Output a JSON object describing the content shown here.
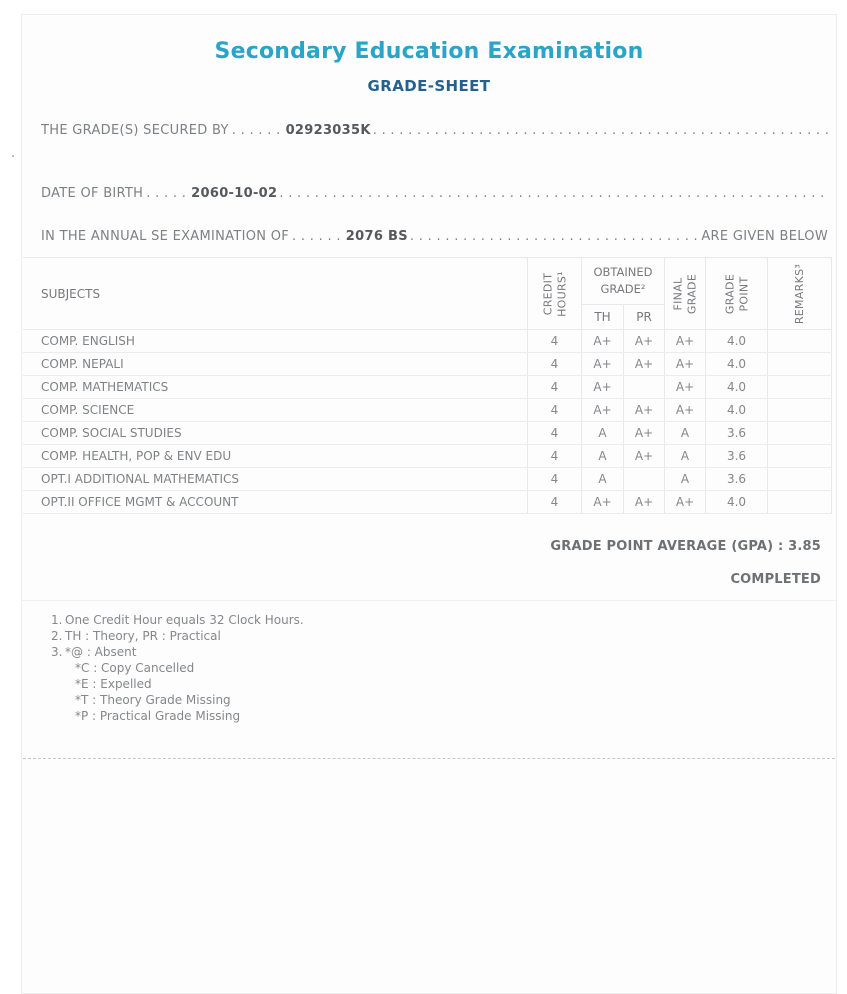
{
  "page": {
    "title": "Secondary Education Examination",
    "subtitle": "GRADE-SHEET",
    "stray_dot": "."
  },
  "info_lines": {
    "secured_by": {
      "label": "THE GRADE(S) SECURED BY",
      "dots_before": ". . . . . .",
      "value": "02923035K",
      "dots_after": ". . . . . . . . . . . . . . . . . . . . . . . . . . . . . . . . . . . . . . . . . . . . . . . . . . . . . . . . . . . . . . . . . . . . . . . . . . . . . . . ."
    },
    "dob": {
      "label": "DATE OF BIRTH",
      "dots_before": ". . . . .",
      "value": "2060-10-02",
      "dots_after": ". . . . . . . . . . . . . . . . . . . . . . . . . . . . . . . . . . . . . . . . . . . . . . . . . . . . . . . . . . . . . . . . . . . . . . . . . . . . . . . ."
    },
    "exam": {
      "label": "IN THE ANNUAL SE EXAMINATION OF",
      "dots_before": ". . . . . .",
      "value": "2076 BS",
      "dots_after": ". . . . . . . . . . . . . . . . . . . . . . . . . . . . . . . . . . . . . . . . . . . . . . . . . . . . . . . . . . . . . . . . . . . . . . . . . . . . . . . .",
      "suffix": "ARE GIVEN BELOW"
    }
  },
  "table": {
    "headers": {
      "subjects": "SUBJECTS",
      "credit_hours": "CREDIT HOURS¹",
      "obtained_grade": "OBTAINED GRADE²",
      "th": "TH",
      "pr": "PR",
      "final_grade": "FINAL GRADE",
      "grade_point": "GRADE POINT",
      "remarks": "REMARKS³"
    },
    "rows": [
      {
        "subject": "COMP. ENGLISH",
        "credit": "4",
        "th": "A+",
        "pr": "A+",
        "final": "A+",
        "point": "4.0",
        "remarks": ""
      },
      {
        "subject": "COMP. NEPALI",
        "credit": "4",
        "th": "A+",
        "pr": "A+",
        "final": "A+",
        "point": "4.0",
        "remarks": ""
      },
      {
        "subject": "COMP. MATHEMATICS",
        "credit": "4",
        "th": "A+",
        "pr": "",
        "final": "A+",
        "point": "4.0",
        "remarks": ""
      },
      {
        "subject": "COMP. SCIENCE",
        "credit": "4",
        "th": "A+",
        "pr": "A+",
        "final": "A+",
        "point": "4.0",
        "remarks": ""
      },
      {
        "subject": "COMP. SOCIAL STUDIES",
        "credit": "4",
        "th": "A",
        "pr": "A+",
        "final": "A",
        "point": "3.6",
        "remarks": ""
      },
      {
        "subject": "COMP. HEALTH, POP & ENV EDU",
        "credit": "4",
        "th": "A",
        "pr": "A+",
        "final": "A",
        "point": "3.6",
        "remarks": ""
      },
      {
        "subject": "OPT.I ADDITIONAL MATHEMATICS",
        "credit": "4",
        "th": "A",
        "pr": "",
        "final": "A",
        "point": "3.6",
        "remarks": ""
      },
      {
        "subject": "OPT.II OFFICE MGMT & ACCOUNT",
        "credit": "4",
        "th": "A+",
        "pr": "A+",
        "final": "A+",
        "point": "4.0",
        "remarks": ""
      }
    ]
  },
  "summary": {
    "gpa_line": "GRADE POINT AVERAGE (GPA) : 3.85",
    "status": "COMPLETED"
  },
  "footnotes": [
    {
      "num": "1.",
      "lines": [
        "One Credit Hour equals 32 Clock Hours."
      ]
    },
    {
      "num": "2.",
      "lines": [
        "TH : Theory, PR : Practical"
      ]
    },
    {
      "num": "3.",
      "lines": [
        "*@ : Absent",
        "*C : Copy Cancelled",
        "*E : Expelled",
        "*T : Theory Grade Missing",
        "*P : Practical Grade Missing"
      ]
    }
  ],
  "colors": {
    "title_accent": "#2aa4c8",
    "subtitle_accent": "#26618e",
    "body_text": "#7d8084",
    "table_border": "#e8e8e8"
  }
}
